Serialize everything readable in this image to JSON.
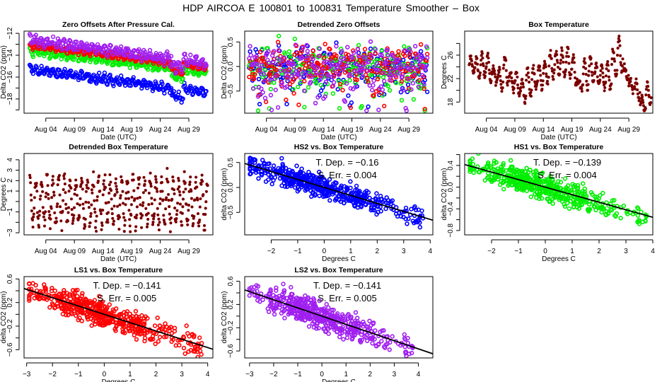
{
  "page_title": "HDP   AIRCOA E   100801 to 100831   Temperature Smoother – Box",
  "colors": {
    "blue": "#0000ff",
    "red": "#ff0000",
    "green": "#00ee00",
    "purple": "#a020f0",
    "dark_red": "#8b0000",
    "line": "#000000"
  },
  "chart_data": [
    {
      "id": "zero-offsets",
      "type": "scatter",
      "title": "Zero Offsets After Pressure Cal.",
      "xlabel": "Date (UTC)",
      "ylabel": "Delta CO2 (ppm)",
      "x_range_days": [
        0.2,
        33.2
      ],
      "xticks": [
        {
          "day": 4,
          "label": "Aug 04"
        },
        {
          "day": 9,
          "label": "Aug 09"
        },
        {
          "day": 14,
          "label": "Aug 14"
        },
        {
          "day": 19,
          "label": "Aug 19"
        },
        {
          "day": 24,
          "label": "Aug 24"
        },
        {
          "day": 29,
          "label": "Aug 29"
        }
      ],
      "ylim": [
        -19.3,
        -11.8
      ],
      "yticks": [
        {
          "v": -12,
          "label": "−12"
        },
        {
          "v": -13,
          "label": ""
        },
        {
          "v": -14,
          "label": "−14"
        },
        {
          "v": -15,
          "label": ""
        },
        {
          "v": -16,
          "label": "−16"
        },
        {
          "v": -17,
          "label": ""
        },
        {
          "v": -18,
          "label": "−18"
        },
        {
          "v": -19,
          "label": ""
        }
      ],
      "series": [
        {
          "name": "HS2",
          "color": "blue",
          "start": -15.3,
          "end": -17.4,
          "spread": 0.7
        },
        {
          "name": "HS1",
          "color": "green",
          "start": -13.6,
          "end": -15.6,
          "spread": 0.6
        },
        {
          "name": "LS1",
          "color": "red",
          "start": -13.1,
          "end": -15.1,
          "spread": 0.5
        },
        {
          "name": "LS2",
          "color": "purple",
          "start": -12.6,
          "end": -14.7,
          "spread": 0.8
        }
      ],
      "x_start_day": 1.2,
      "x_end_day": 32.1
    },
    {
      "id": "detrended-zero-offsets",
      "type": "scatter",
      "title": "Detrended Zero Offsets",
      "xlabel": "Date (UTC)",
      "ylabel": "Delta CO2 (ppm)",
      "x_range_days": [
        0.2,
        33.2
      ],
      "xticks": [
        {
          "day": 4,
          "label": "Aug 04"
        },
        {
          "day": 9,
          "label": "Aug 09"
        },
        {
          "day": 14,
          "label": "Aug 14"
        },
        {
          "day": 19,
          "label": "Aug 19"
        },
        {
          "day": 24,
          "label": "Aug 24"
        },
        {
          "day": 29,
          "label": "Aug 29"
        }
      ],
      "ylim": [
        -0.95,
        0.72
      ],
      "yticks": [
        {
          "v": 0.5,
          "label": "0.5"
        },
        {
          "v": 0,
          "label": "0.0"
        },
        {
          "v": -0.5,
          "label": "−0.5"
        }
      ],
      "series": [
        {
          "name": "HS2",
          "color": "blue"
        },
        {
          "name": "HS1",
          "color": "green"
        },
        {
          "name": "LS1",
          "color": "red"
        },
        {
          "name": "LS2",
          "color": "purple"
        }
      ],
      "y_range": [
        -0.9,
        0.65
      ],
      "x_start_day": 1.0,
      "x_end_day": 32.3
    },
    {
      "id": "box-temperature",
      "type": "scatter",
      "title": "Box Temperature",
      "xlabel": "Date (UTC)",
      "ylabel": "Degrees C",
      "x_range_days": [
        0.2,
        33.2
      ],
      "xticks": [
        {
          "day": 4,
          "label": "Aug 04"
        },
        {
          "day": 9,
          "label": "Aug 09"
        },
        {
          "day": 14,
          "label": "Aug 14"
        },
        {
          "day": 19,
          "label": "Aug 19"
        },
        {
          "day": 24,
          "label": "Aug 24"
        },
        {
          "day": 29,
          "label": "Aug 29"
        }
      ],
      "ylim": [
        16.1,
        30.1
      ],
      "yticks": [
        {
          "v": 18,
          "label": "18"
        },
        {
          "v": 20,
          "label": ""
        },
        {
          "v": 22,
          "label": "22"
        },
        {
          "v": 24,
          "label": ""
        },
        {
          "v": 26,
          "label": "26"
        },
        {
          "v": 28,
          "label": ""
        }
      ],
      "series": [
        {
          "name": "Box Temperature",
          "color": "dark_red"
        }
      ],
      "daily_range": [
        [
          1,
          23,
          26
        ],
        [
          2,
          22,
          25.5
        ],
        [
          3,
          22,
          26.4
        ],
        [
          4,
          21,
          26.5
        ],
        [
          5,
          21,
          24
        ],
        [
          6,
          20,
          24
        ],
        [
          7,
          21,
          26
        ],
        [
          8,
          20,
          23.5
        ],
        [
          9,
          19,
          23.5
        ],
        [
          10,
          18,
          22
        ],
        [
          11,
          19,
          24
        ],
        [
          12,
          20,
          24
        ],
        [
          13,
          20,
          24.5
        ],
        [
          14,
          21,
          25
        ],
        [
          15,
          22,
          26.5
        ],
        [
          16,
          22,
          27
        ],
        [
          17,
          22,
          27
        ],
        [
          18,
          22,
          27.4
        ],
        [
          19,
          20.5,
          26.5
        ],
        [
          20,
          20,
          22
        ],
        [
          21,
          20,
          25.5
        ],
        [
          22,
          21,
          26
        ],
        [
          23,
          21,
          24.5
        ],
        [
          24,
          20,
          24.5
        ],
        [
          25,
          20,
          25
        ],
        [
          26,
          22,
          27
        ],
        [
          27,
          23,
          29.4
        ],
        [
          28,
          21.5,
          24.5
        ],
        [
          29,
          20,
          22
        ],
        [
          30,
          18,
          22
        ],
        [
          31,
          16.5,
          19
        ],
        [
          32,
          17.5,
          21.5
        ]
      ]
    },
    {
      "id": "detrended-box-temperature",
      "type": "scatter",
      "title": "Detrended Box Temperature",
      "xlabel": "Date (UTC)",
      "ylabel": "Degrees C",
      "x_range_days": [
        0.2,
        33.2
      ],
      "xticks": [
        {
          "day": 4,
          "label": "Aug 04"
        },
        {
          "day": 9,
          "label": "Aug 09"
        },
        {
          "day": 14,
          "label": "Aug 14"
        },
        {
          "day": 19,
          "label": "Aug 19"
        },
        {
          "day": 24,
          "label": "Aug 24"
        },
        {
          "day": 29,
          "label": "Aug 29"
        }
      ],
      "ylim": [
        -3.2,
        4.6
      ],
      "yticks": [
        {
          "v": 4,
          "label": "4"
        },
        {
          "v": 3,
          "label": "3"
        },
        {
          "v": 2,
          "label": "2"
        },
        {
          "v": 1,
          "label": "1"
        },
        {
          "v": 0,
          "label": ""
        },
        {
          "v": -1,
          "label": "−1"
        },
        {
          "v": -2,
          "label": ""
        },
        {
          "v": -3,
          "label": "−3"
        }
      ],
      "series": [
        {
          "name": "Detrended Box Temperature",
          "color": "dark_red"
        }
      ],
      "y_range": [
        -2.9,
        4.2
      ],
      "x_start_day": 1.2,
      "x_end_day": 32.3
    },
    {
      "id": "hs2-vs-box",
      "type": "scatter",
      "title": "HS2 vs. Box Temperature",
      "xlabel": "Degrees C",
      "ylabel": "delta CO2 (ppm)",
      "xlim": [
        -3.0,
        4.1
      ],
      "xticks": [
        {
          "v": -2,
          "label": "−2"
        },
        {
          "v": -1,
          "label": "−1"
        },
        {
          "v": 0,
          "label": "0"
        },
        {
          "v": 1,
          "label": "1"
        },
        {
          "v": 2,
          "label": "2"
        },
        {
          "v": 3,
          "label": "3"
        },
        {
          "v": 4,
          "label": "4"
        }
      ],
      "ylim": [
        -0.95,
        0.68
      ],
      "yticks": [
        {
          "v": 0.5,
          "label": "0.5"
        },
        {
          "v": 0,
          "label": "0.0"
        },
        {
          "v": -0.5,
          "label": "−0.5"
        }
      ],
      "series": [
        {
          "name": "HS2",
          "color": "blue"
        }
      ],
      "fit": {
        "slope": -0.16,
        "intercept": 0.0
      },
      "annotations": [
        "T. Dep. =  −0.16",
        "S. Err. =  0.004"
      ]
    },
    {
      "id": "hs1-vs-box",
      "type": "scatter",
      "title": "HS1 vs. Box Temperature",
      "xlabel": "Degrees C",
      "ylabel": "delta CO2 (ppm)",
      "xlim": [
        -3.0,
        4.0
      ],
      "xticks": [
        {
          "v": -2,
          "label": "−2"
        },
        {
          "v": -1,
          "label": "−1"
        },
        {
          "v": 0,
          "label": "0"
        },
        {
          "v": 1,
          "label": "1"
        },
        {
          "v": 2,
          "label": "2"
        },
        {
          "v": 3,
          "label": "3"
        },
        {
          "v": 4,
          "label": "4"
        }
      ],
      "ylim": [
        -0.88,
        0.62
      ],
      "yticks": [
        {
          "v": 0.6,
          "label": ""
        },
        {
          "v": 0.4,
          "label": "0.4"
        },
        {
          "v": 0.2,
          "label": ""
        },
        {
          "v": 0,
          "label": "0.0"
        },
        {
          "v": -0.2,
          "label": ""
        },
        {
          "v": -0.4,
          "label": "−0.4"
        },
        {
          "v": -0.6,
          "label": ""
        },
        {
          "v": -0.8,
          "label": "−0.8"
        }
      ],
      "series": [
        {
          "name": "HS1",
          "color": "green"
        }
      ],
      "fit": {
        "slope": -0.139,
        "intercept": 0.0
      },
      "annotations": [
        "T. Dep. =  −0.139",
        "S. Err. =  0.004"
      ]
    },
    {
      "id": "ls1-vs-box",
      "type": "scatter",
      "title": "LS1 vs. Box Temperature",
      "xlabel": "Degrees C",
      "ylabel": "delta CO2 (ppm)",
      "xlim": [
        -3.1,
        4.2
      ],
      "xticks": [
        {
          "v": -3,
          "label": "−3"
        },
        {
          "v": -2,
          "label": "−2"
        },
        {
          "v": -1,
          "label": "−1"
        },
        {
          "v": 0,
          "label": "0"
        },
        {
          "v": 1,
          "label": "1"
        },
        {
          "v": 2,
          "label": "2"
        },
        {
          "v": 3,
          "label": "3"
        },
        {
          "v": 4,
          "label": "4"
        }
      ],
      "ylim": [
        -0.74,
        0.64
      ],
      "yticks": [
        {
          "v": 0.6,
          "label": "0.6"
        },
        {
          "v": 0.4,
          "label": ""
        },
        {
          "v": 0.2,
          "label": "0.2"
        },
        {
          "v": 0,
          "label": ""
        },
        {
          "v": -0.2,
          "label": "−0.2"
        },
        {
          "v": -0.4,
          "label": ""
        },
        {
          "v": -0.6,
          "label": "−0.6"
        }
      ],
      "series": [
        {
          "name": "LS1",
          "color": "red"
        }
      ],
      "fit": {
        "slope": -0.141,
        "intercept": 0.0
      },
      "annotations": [
        "T. Dep. =  −0.141",
        "S. Err. =  0.005"
      ]
    },
    {
      "id": "ls2-vs-box",
      "type": "scatter",
      "title": "LS2 vs. Box Temperature",
      "xlabel": "Degrees C",
      "ylabel": "delta CO2 (ppm)",
      "xlim": [
        -3.2,
        4.6
      ],
      "xticks": [
        {
          "v": -3,
          "label": "−3"
        },
        {
          "v": -2,
          "label": "−2"
        },
        {
          "v": -1,
          "label": "−1"
        },
        {
          "v": 0,
          "label": "0"
        },
        {
          "v": 1,
          "label": "1"
        },
        {
          "v": 2,
          "label": "2"
        },
        {
          "v": 3,
          "label": "3"
        },
        {
          "v": 4,
          "label": "4"
        }
      ],
      "ylim": [
        -0.72,
        0.68
      ],
      "yticks": [
        {
          "v": 0.6,
          "label": "0.6"
        },
        {
          "v": 0.4,
          "label": ""
        },
        {
          "v": 0.2,
          "label": "0.2"
        },
        {
          "v": 0,
          "label": ""
        },
        {
          "v": -0.2,
          "label": "−0.2"
        },
        {
          "v": -0.4,
          "label": ""
        },
        {
          "v": -0.6,
          "label": "−0.6"
        }
      ],
      "series": [
        {
          "name": "LS2",
          "color": "purple"
        }
      ],
      "fit": {
        "slope": -0.141,
        "intercept": 0.0
      },
      "annotations": [
        "T. Dep. =  −0.141",
        "S. Err. =  0.005"
      ]
    }
  ]
}
